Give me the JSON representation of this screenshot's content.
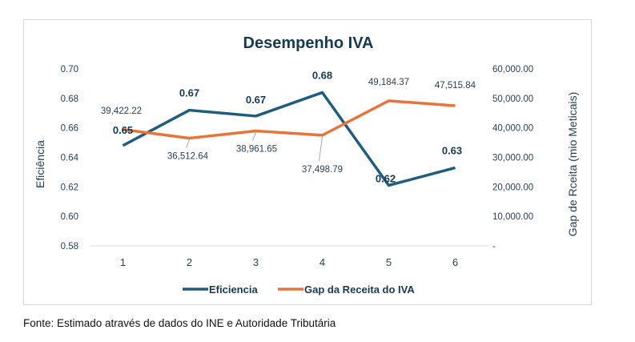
{
  "chart_data": {
    "type": "line",
    "title": "Desempenho IVA",
    "xlabel": "",
    "ylabel": "Eficiência",
    "y2label": "Gap de Rceita (mio Meticais)",
    "categories": [
      "1",
      "2",
      "3",
      "4",
      "5",
      "6"
    ],
    "ylim": [
      0.58,
      0.7
    ],
    "y_ticks": [
      "0.70",
      "0.68",
      "0.66",
      "0.64",
      "0.62",
      "0.60",
      "0.58"
    ],
    "y2lim": [
      0,
      60000
    ],
    "y2_ticks": [
      "60,000.00",
      "50,000.00",
      "40,000.00",
      "30,000.00",
      "20,000.00",
      "10,000.00",
      "-"
    ],
    "grid": false,
    "legend_position": "bottom",
    "series": [
      {
        "name": "Eficiencia",
        "axis": "left",
        "color": "#1f5c7f",
        "values": [
          0.648,
          0.672,
          0.668,
          0.684,
          0.621,
          0.633
        ],
        "labels": [
          "0.65",
          "0.67",
          "0.67",
          "0.68",
          "0.62",
          "0.63"
        ]
      },
      {
        "name": "Gap da Receita do IVA",
        "axis": "right",
        "color": "#e8743b",
        "values": [
          39422.22,
          36512.64,
          38961.65,
          37498.79,
          49184.37,
          47515.84
        ],
        "labels": [
          "39,422.22",
          "36,512.64",
          "38,961.65",
          "37,498.79",
          "49,184.37",
          "47,515.84"
        ]
      }
    ]
  },
  "source_note": "Fonte: Estimado através de dados do INE e Autoridade Tributária"
}
